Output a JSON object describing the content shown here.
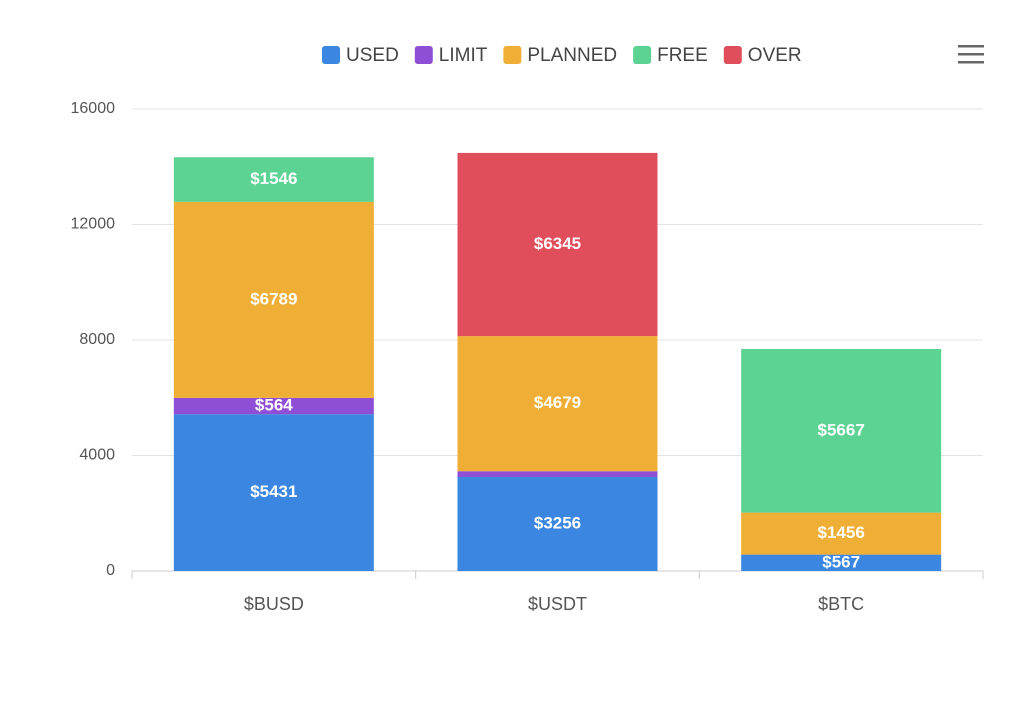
{
  "chart_data": {
    "type": "stacked_bar",
    "categories": [
      "$BUSD",
      "$USDT",
      "$BTC"
    ],
    "series": [
      {
        "name": "USED",
        "color": "#3b86e0",
        "values": [
          5431,
          3256,
          567
        ],
        "value_labels": [
          "$5431",
          "$3256",
          "$567"
        ]
      },
      {
        "name": "LIMIT",
        "color": "#8e4fd6",
        "values": [
          564,
          200,
          null
        ],
        "value_labels": [
          "$564",
          null,
          null
        ]
      },
      {
        "name": "PLANNED",
        "color": "#efae36",
        "values": [
          6789,
          4679,
          1456
        ],
        "value_labels": [
          "$6789",
          "$4679",
          "$1456"
        ]
      },
      {
        "name": "FREE",
        "color": "#5dd393",
        "values": [
          1546,
          null,
          5667
        ],
        "value_labels": [
          "$1546",
          null,
          "$5667"
        ]
      },
      {
        "name": "OVER",
        "color": "#e04e5c",
        "values": [
          null,
          6345,
          null
        ],
        "value_labels": [
          null,
          "$6345",
          null
        ]
      }
    ],
    "ylim": [
      0,
      16000
    ],
    "yticks": [
      0,
      4000,
      8000,
      12000,
      16000
    ],
    "grid": true
  }
}
